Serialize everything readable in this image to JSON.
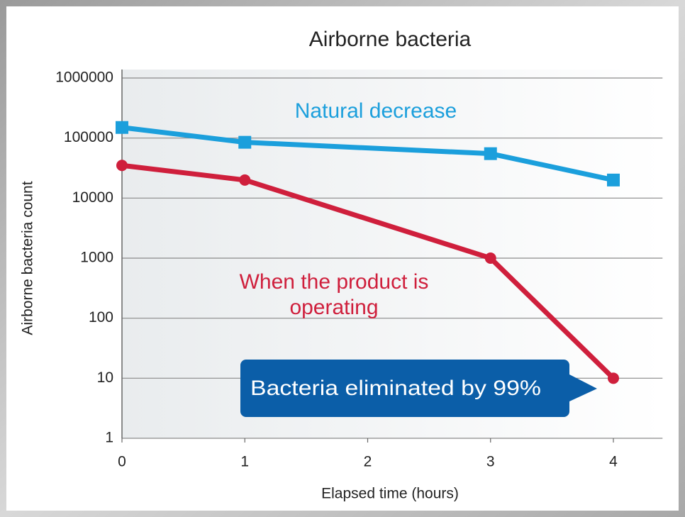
{
  "chart_data": {
    "type": "line",
    "title": "Airborne bacteria",
    "x_label": "Elapsed time (hours)",
    "y_label": "Airborne bacteria count",
    "x": [
      0,
      1,
      3,
      4
    ],
    "series": [
      {
        "name": "Natural decrease",
        "color": "#1b9fdc",
        "marker": "square",
        "values": [
          150000,
          85000,
          55000,
          20000
        ]
      },
      {
        "name": "When the product is operating",
        "color": "#cf1f3c",
        "marker": "circle",
        "values": [
          35000,
          20000,
          1000,
          10
        ]
      }
    ],
    "xlim": [
      0,
      4.4
    ],
    "xticks": [
      0,
      1,
      2,
      3,
      4
    ],
    "ylim": [
      1,
      1000000
    ],
    "yticks": [
      1,
      10,
      100,
      1000,
      10000,
      100000,
      1000000
    ],
    "log_y": true,
    "grid": true,
    "annotations": [
      {
        "text": "Bacteria eliminated by 99%"
      }
    ]
  }
}
